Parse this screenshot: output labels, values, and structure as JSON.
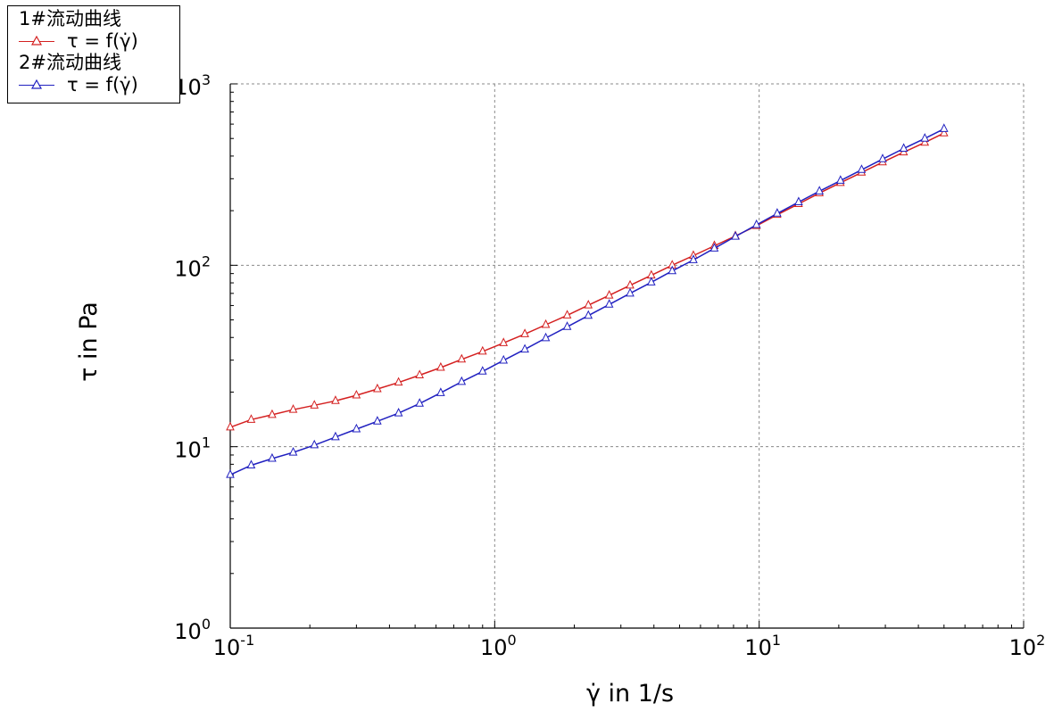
{
  "chart_data": {
    "type": "line",
    "xlabel": "γ̇ in 1/s",
    "ylabel": "τ in Pa",
    "xscale": "log",
    "yscale": "log",
    "xlim": [
      0.1,
      100
    ],
    "ylim": [
      1,
      1000
    ],
    "grid": true,
    "legend_position": "top-left",
    "x_ticks": [
      {
        "base": "10",
        "exp": "-1",
        "value": 0.1
      },
      {
        "base": "10",
        "exp": "0",
        "value": 1
      },
      {
        "base": "10",
        "exp": "1",
        "value": 10
      },
      {
        "base": "10",
        "exp": "2",
        "value": 100
      }
    ],
    "y_ticks": [
      {
        "base": "10",
        "exp": "0",
        "value": 1
      },
      {
        "base": "10",
        "exp": "1",
        "value": 10
      },
      {
        "base": "10",
        "exp": "2",
        "value": 100
      },
      {
        "base": "10",
        "exp": "3",
        "value": 1000
      }
    ],
    "series": [
      {
        "group": "1#流动曲线",
        "name": "τ = f(γ̇)",
        "color": "#d42020",
        "marker": "triangle",
        "x": [
          0.1,
          0.12,
          0.144,
          0.173,
          0.208,
          0.25,
          0.3,
          0.36,
          0.433,
          0.52,
          0.625,
          0.75,
          0.9,
          1.08,
          1.3,
          1.56,
          1.88,
          2.26,
          2.71,
          3.25,
          3.91,
          4.69,
          5.64,
          6.77,
          8.13,
          9.77,
          11.7,
          14.1,
          16.9,
          20.3,
          24.4,
          29.3,
          35.2,
          42.3,
          50
        ],
        "y": [
          12.8,
          14.1,
          15.0,
          16.0,
          16.9,
          17.9,
          19.2,
          20.8,
          22.6,
          24.8,
          27.3,
          30.3,
          33.5,
          37.3,
          41.8,
          47.0,
          53.0,
          60.2,
          68.2,
          77.5,
          88.0,
          100,
          113,
          128,
          145,
          165,
          190,
          218,
          250,
          285,
          325,
          370,
          420,
          475,
          535
        ]
      },
      {
        "group": "2#流动曲线",
        "name": "τ = f(γ̇)",
        "color": "#2020c0",
        "marker": "triangle",
        "x": [
          0.1,
          0.12,
          0.144,
          0.173,
          0.208,
          0.25,
          0.3,
          0.36,
          0.433,
          0.52,
          0.625,
          0.75,
          0.9,
          1.08,
          1.3,
          1.56,
          1.88,
          2.26,
          2.71,
          3.25,
          3.91,
          4.69,
          5.64,
          6.77,
          8.13,
          9.77,
          11.7,
          14.1,
          16.9,
          20.3,
          24.4,
          29.3,
          35.2,
          42.3,
          50
        ],
        "y": [
          7.0,
          7.9,
          8.6,
          9.3,
          10.2,
          11.3,
          12.5,
          13.8,
          15.3,
          17.3,
          19.8,
          22.8,
          26.0,
          29.9,
          34.4,
          39.7,
          45.8,
          52.8,
          60.8,
          70.0,
          80.6,
          93,
          107,
          124,
          144,
          167,
          193,
          223,
          256,
          293,
          336,
          385,
          440,
          500,
          565
        ]
      }
    ]
  }
}
